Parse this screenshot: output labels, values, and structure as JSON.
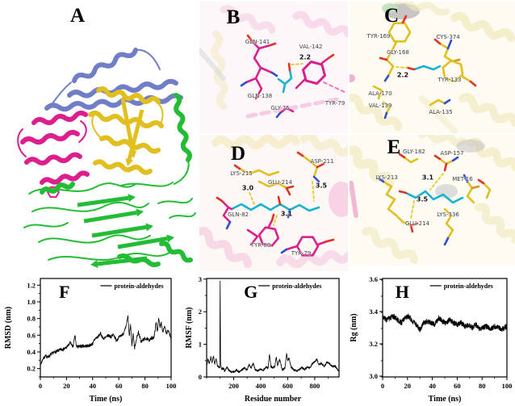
{
  "figure_title": "protein-aldehyde complex MD figure",
  "colors": {
    "magenta": "#dc1f8c",
    "yellow": "#e0bf1e",
    "cyan": "#16b2d2",
    "blue": "#6f7ec7",
    "green": "#23bd35",
    "hbond_dash": "#e3cc2a",
    "oxygen": "#e03326",
    "nitrogen": "#2f4fd0",
    "sulfur": "#d8912a",
    "chart_line": "#000000",
    "bg_pink_ribbon": "#f4c3dc",
    "bg_yellow_ribbon": "#f2e9bd"
  },
  "panels": {
    "A": {
      "letter": "A"
    },
    "B": {
      "letter": "B",
      "labels": [
        "GLN-141",
        "VAL-142",
        "2.2",
        "GLN-138",
        "GLY-75",
        "TYR-79"
      ]
    },
    "C": {
      "letter": "C",
      "labels": [
        "TYR-169",
        "CYS-374",
        "GLY-168",
        "2.2",
        "TYR-133",
        "ALA-170",
        "VAL-139",
        "ALA-135"
      ]
    },
    "D": {
      "letter": "D",
      "labels": [
        "LYS-215",
        "ASP-211",
        "GLU-214",
        "3.0",
        "3.5",
        "GLN-82",
        "3.1",
        "TYR-80",
        "TYR-79"
      ]
    },
    "E": {
      "letter": "E",
      "labels": [
        "GLY-182",
        "ASP-157",
        "LYS-213",
        "3.1",
        "MET-16",
        "3.5",
        "GLU-214",
        "LYS-336"
      ]
    }
  },
  "chart_data": [
    {
      "id": "F",
      "type": "line",
      "letter": "F",
      "xlabel": "Time (ns)",
      "ylabel": "RMSD (nm)",
      "legend": "protein-aldehydes",
      "xlim": [
        0,
        100
      ],
      "ylim": [
        0.1,
        1.28
      ],
      "xticks": [
        0,
        20,
        40,
        60,
        80,
        100
      ],
      "xtick_labels": [
        "0",
        "20",
        "40",
        "60",
        "80",
        "100"
      ],
      "yticks": [
        0.2,
        0.4,
        0.6,
        0.8,
        1.0,
        1.2
      ],
      "ytick_labels": [
        "0.2",
        "0.4",
        "0.6",
        "0.8",
        "1.0",
        "1.2"
      ],
      "x_minor": 10,
      "y_minor": 0.1,
      "grid": false,
      "legend_position": "top-center",
      "series": [
        {
          "name": "protein-aldehydes",
          "x": [
            0,
            2,
            4,
            6,
            8,
            10,
            13,
            16,
            19,
            21,
            23,
            25,
            26.5,
            27.5,
            29,
            32,
            35,
            38,
            40,
            42,
            44,
            46,
            48,
            50,
            52,
            54,
            56,
            58,
            60,
            62,
            64,
            65.5,
            67,
            68,
            69,
            70,
            71,
            72,
            73.5,
            75,
            77,
            79,
            81,
            83,
            85,
            87,
            88.5,
            89.5,
            90.5,
            91.5,
            92.5,
            93.5,
            95,
            96.5,
            98,
            100
          ],
          "y": [
            0.24,
            0.32,
            0.35,
            0.34,
            0.37,
            0.39,
            0.41,
            0.43,
            0.44,
            0.47,
            0.51,
            0.46,
            0.6,
            0.47,
            0.46,
            0.47,
            0.47,
            0.48,
            0.5,
            0.56,
            0.58,
            0.62,
            0.56,
            0.57,
            0.6,
            0.58,
            0.61,
            0.54,
            0.57,
            0.6,
            0.63,
            0.7,
            0.83,
            0.58,
            0.73,
            0.48,
            0.63,
            0.44,
            0.56,
            0.64,
            0.52,
            0.55,
            0.56,
            0.54,
            0.56,
            0.58,
            0.75,
            0.65,
            0.8,
            0.7,
            0.76,
            0.64,
            0.7,
            0.62,
            0.66,
            0.55
          ]
        }
      ],
      "noise_amp": 0.02,
      "samples": 800,
      "seed": 7
    },
    {
      "id": "G",
      "type": "line",
      "letter": "G",
      "xlabel": "Residue number",
      "ylabel": "RMSF (nm)",
      "legend": "protein-aldehydes",
      "xlim": [
        0,
        980
      ],
      "ylim": [
        0,
        3.02
      ],
      "xticks": [
        200,
        400,
        600,
        800
      ],
      "xtick_labels": [
        "200",
        "400",
        "600",
        "800"
      ],
      "yticks": [
        0,
        1,
        2,
        3
      ],
      "ytick_labels": [
        "0",
        "1",
        "2",
        "3"
      ],
      "x_minor": 100,
      "y_minor": 0.5,
      "grid": false,
      "legend_position": "top-center",
      "series": [
        {
          "name": "protein-aldehydes",
          "x": [
            0,
            10,
            20,
            30,
            40,
            50,
            60,
            70,
            80,
            90,
            97,
            100,
            103,
            110,
            120,
            135,
            150,
            165,
            180,
            200,
            220,
            240,
            260,
            280,
            300,
            315,
            330,
            345,
            360,
            380,
            400,
            420,
            440,
            455,
            465,
            475,
            490,
            505,
            515,
            525,
            540,
            560,
            580,
            592,
            600,
            610,
            625,
            645,
            665,
            685,
            705,
            725,
            745,
            765,
            785,
            805,
            815,
            830,
            850,
            870,
            890,
            910,
            930,
            950,
            965,
            980
          ],
          "y": [
            0.35,
            0.55,
            0.4,
            0.62,
            0.45,
            0.65,
            0.4,
            0.55,
            0.35,
            0.3,
            0.28,
            3.0,
            0.45,
            0.22,
            0.28,
            0.18,
            0.3,
            0.2,
            0.16,
            0.15,
            0.22,
            0.14,
            0.22,
            0.28,
            0.22,
            0.38,
            0.28,
            0.42,
            0.22,
            0.18,
            0.24,
            0.2,
            0.3,
            0.28,
            0.72,
            0.32,
            0.28,
            0.32,
            0.62,
            0.35,
            0.55,
            0.22,
            0.28,
            0.72,
            0.5,
            0.58,
            0.3,
            0.22,
            0.18,
            0.22,
            0.3,
            0.22,
            0.3,
            0.28,
            0.42,
            0.48,
            0.55,
            0.38,
            0.42,
            0.32,
            0.45,
            0.4,
            0.32,
            0.35,
            0.25,
            0.18
          ]
        }
      ],
      "noise_amp": 0.03,
      "samples": 1000,
      "seed": 13
    },
    {
      "id": "H",
      "type": "line",
      "letter": "H",
      "xlabel": "Time (ns)",
      "ylabel": "Rg (nm)",
      "legend": "protein-aldehydes",
      "xlim": [
        0,
        100
      ],
      "ylim": [
        2.995,
        3.605
      ],
      "xticks": [
        0,
        20,
        40,
        60,
        80,
        100
      ],
      "xtick_labels": [
        "0",
        "20",
        "40",
        "60",
        "80",
        "100"
      ],
      "yticks": [
        3.0,
        3.2,
        3.4,
        3.6
      ],
      "ytick_labels": [
        "3.0",
        "3.2",
        "3.4",
        "3.6"
      ],
      "x_minor": 10,
      "y_minor": 0.1,
      "grid": false,
      "legend_position": "top-center",
      "series": [
        {
          "name": "protein-aldehydes",
          "x": [
            0,
            3,
            6,
            9,
            12,
            15,
            18,
            21,
            24,
            27,
            30,
            33,
            36,
            39,
            42,
            45,
            48,
            51,
            54,
            57,
            60,
            63,
            66,
            69,
            72,
            75,
            78,
            81,
            84,
            87,
            90,
            93,
            96,
            100
          ],
          "y": [
            3.37,
            3.35,
            3.36,
            3.37,
            3.35,
            3.33,
            3.36,
            3.37,
            3.34,
            3.32,
            3.29,
            3.33,
            3.34,
            3.33,
            3.32,
            3.36,
            3.34,
            3.33,
            3.35,
            3.33,
            3.32,
            3.33,
            3.31,
            3.32,
            3.3,
            3.32,
            3.29,
            3.3,
            3.31,
            3.29,
            3.31,
            3.3,
            3.29,
            3.31
          ]
        }
      ],
      "noise_amp": 0.018,
      "samples": 1200,
      "seed": 3
    }
  ]
}
